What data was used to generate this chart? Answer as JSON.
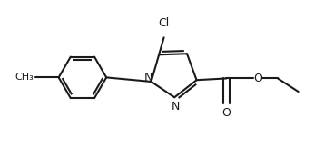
{
  "bg_color": "#ffffff",
  "line_color": "#1a1a1a",
  "lw": 1.5,
  "figsize": [
    3.68,
    1.62
  ],
  "dpi": 100,
  "xlim": [
    0.0,
    10.0
  ],
  "ylim": [
    0.0,
    4.4
  ]
}
